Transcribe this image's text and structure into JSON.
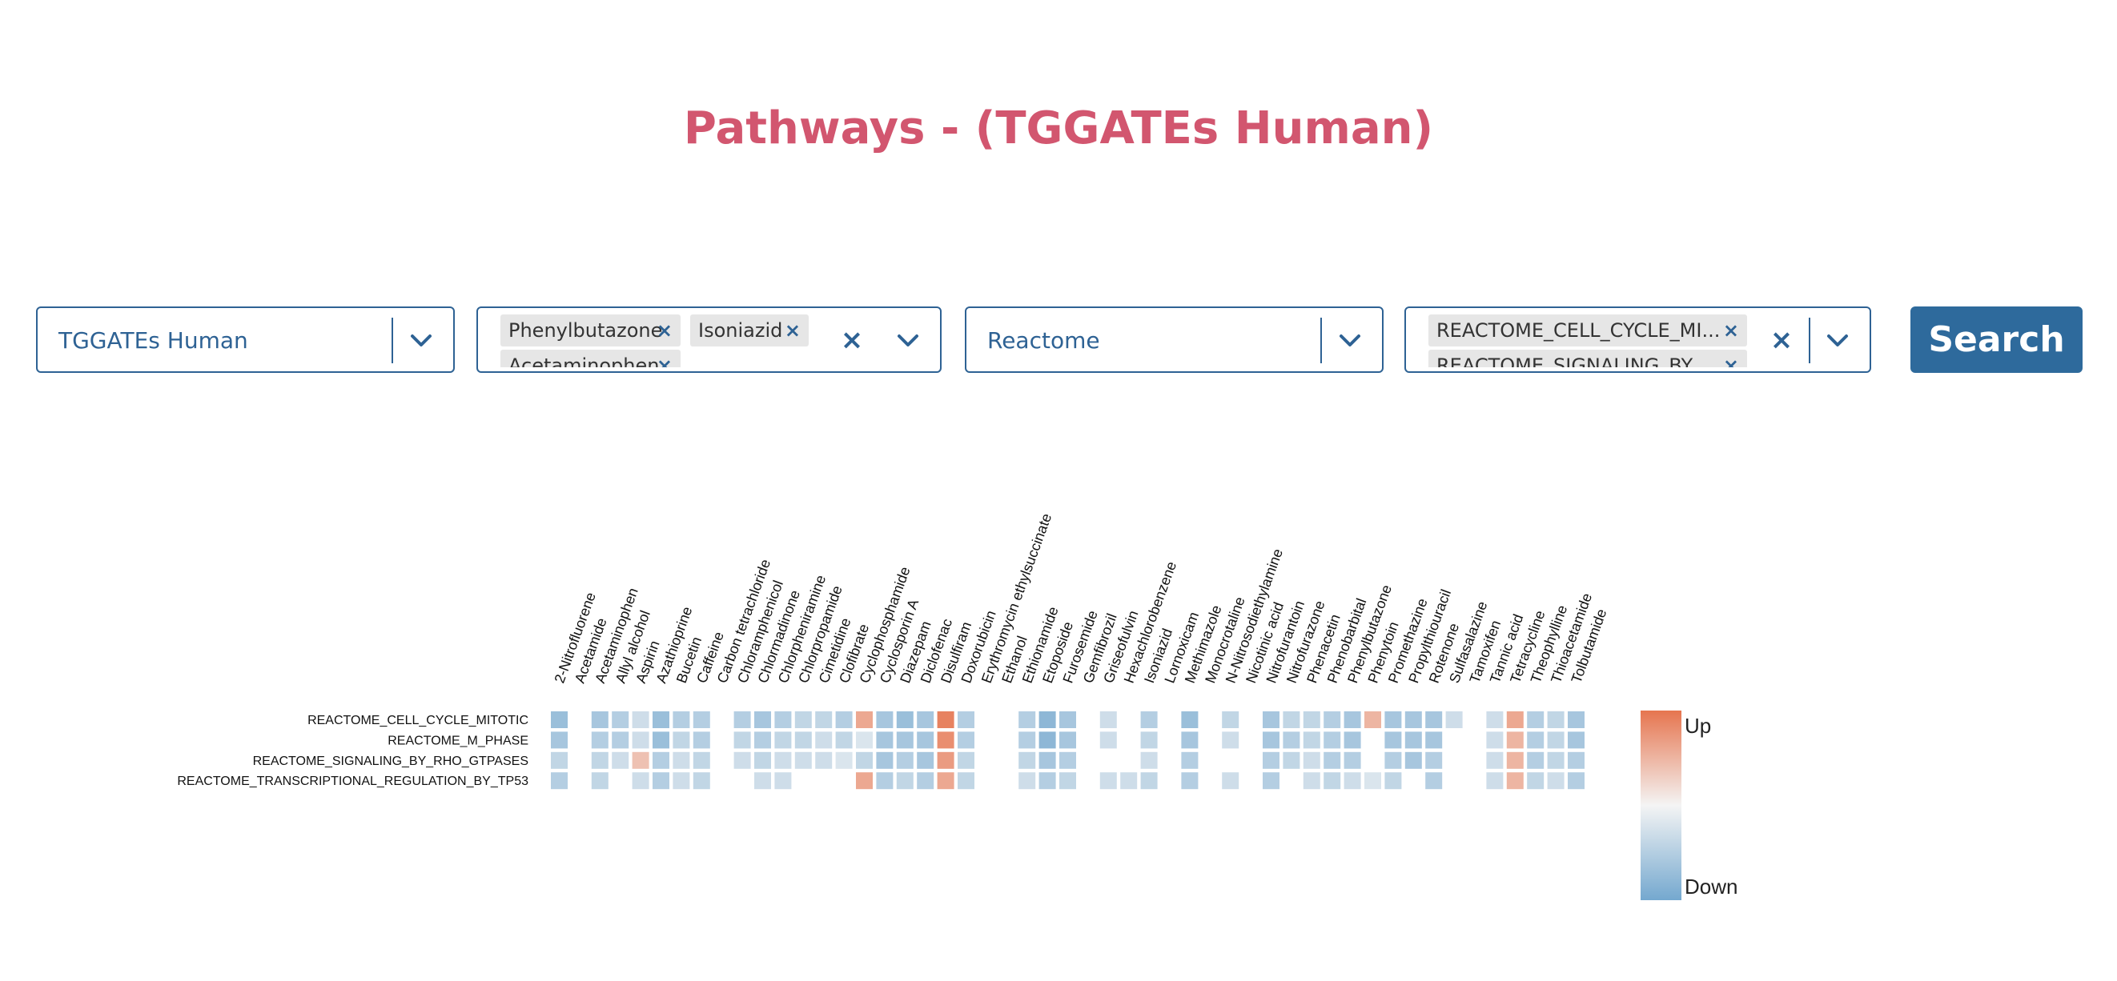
{
  "title": "Pathways - (TGGATEs Human)",
  "filters": {
    "dataset": {
      "value": "TGGATEs Human"
    },
    "compounds": {
      "tags": [
        "Phenylbutazone",
        "Isoniazid",
        "Acetaminophen"
      ]
    },
    "database": {
      "value": "Reactome"
    },
    "pathways": {
      "tags": [
        "REACTOME_CELL_CYCLE_MI...",
        "REACTOME_SIGNALING_BY_..."
      ]
    }
  },
  "search_button": {
    "label": "Search"
  },
  "icons": {
    "clear": "close-icon",
    "dropdown": "chevron-down-icon",
    "tag_remove": "close-icon"
  },
  "colors": {
    "title": "#d2566f",
    "accent": "#2e6294",
    "button": "#2e6a9c",
    "up": "#e6754f",
    "down": "#74a8cf"
  },
  "chart_data": {
    "type": "heatmap",
    "x": [
      "2-Nitrofluorene",
      "Acetamide",
      "Acetaminophen",
      "Allyl alcohol",
      "Aspirin",
      "Azathioprine",
      "Bucetin",
      "Caffeine",
      "Carbon tetrachloride",
      "Chloramphenicol",
      "Chlormadinone",
      "Chlorpheniramine",
      "Chlorpropamide",
      "Cimetidine",
      "Clofibrate",
      "Cyclophosphamide",
      "Cyclosporin A",
      "Diazepam",
      "Diclofenac",
      "Disulfiram",
      "Doxorubicin",
      "Erythromycin ethylsuccinate",
      "Ethanol",
      "Ethionamide",
      "Etoposide",
      "Furosemide",
      "Gemfibrozil",
      "Griseofulvin",
      "Hexachlorobenzene",
      "Isoniazid",
      "Lornoxicam",
      "Methimazole",
      "Monocrotaline",
      "N-Nitrosodiethylamine",
      "Nicotinic acid",
      "Nitrofurantoin",
      "Nitrofurazone",
      "Phenacetin",
      "Phenobarbital",
      "Phenylbutazone",
      "Phenytoin",
      "Promethazine",
      "Propylthiouracil",
      "Rotenone",
      "Sulfasalazine",
      "Tamoxifen",
      "Tannic acid",
      "Tetracycline",
      "Theophylline",
      "Thioacetamide",
      "Tolbutamide"
    ],
    "y": [
      "REACTOME_CELL_CYCLE_MITOTIC",
      "REACTOME_M_PHASE",
      "REACTOME_SIGNALING_BY_RHO_GTPASES",
      "REACTOME_TRANSCRIPTIONAL_REGULATION_BY_TP53"
    ],
    "values": [
      [
        -0.7,
        null,
        -0.6,
        -0.5,
        -0.3,
        -0.7,
        -0.5,
        -0.5,
        null,
        -0.5,
        -0.6,
        -0.5,
        -0.4,
        -0.4,
        -0.5,
        0.6,
        -0.6,
        -0.7,
        -0.6,
        0.9,
        -0.5,
        null,
        null,
        -0.5,
        -0.8,
        -0.6,
        null,
        -0.3,
        null,
        -0.5,
        null,
        -0.7,
        null,
        -0.4,
        null,
        -0.6,
        -0.4,
        -0.4,
        -0.5,
        -0.6,
        0.5,
        -0.6,
        -0.6,
        -0.6,
        -0.3,
        null,
        -0.3,
        0.6,
        -0.5,
        -0.4,
        -0.6
      ],
      [
        -0.6,
        null,
        -0.5,
        -0.5,
        -0.3,
        -0.7,
        -0.4,
        -0.5,
        null,
        -0.4,
        -0.5,
        -0.4,
        -0.4,
        -0.3,
        -0.4,
        -0.2,
        -0.6,
        -0.6,
        -0.6,
        0.8,
        -0.5,
        null,
        null,
        -0.5,
        -0.8,
        -0.6,
        null,
        -0.3,
        null,
        -0.4,
        null,
        -0.6,
        null,
        -0.3,
        null,
        -0.6,
        -0.5,
        -0.4,
        -0.5,
        -0.6,
        null,
        -0.6,
        -0.6,
        -0.6,
        null,
        null,
        -0.3,
        0.5,
        -0.5,
        -0.4,
        -0.6
      ],
      [
        -0.4,
        null,
        -0.4,
        -0.3,
        0.4,
        -0.5,
        -0.3,
        -0.4,
        null,
        -0.3,
        -0.4,
        -0.3,
        -0.3,
        -0.3,
        -0.2,
        -0.4,
        -0.6,
        -0.5,
        -0.6,
        0.7,
        -0.4,
        null,
        null,
        -0.4,
        -0.6,
        -0.5,
        null,
        null,
        null,
        -0.3,
        null,
        -0.5,
        null,
        null,
        null,
        -0.5,
        -0.4,
        -0.3,
        -0.5,
        -0.5,
        null,
        -0.5,
        -0.6,
        -0.5,
        null,
        null,
        -0.3,
        0.5,
        -0.5,
        -0.4,
        -0.5
      ],
      [
        -0.5,
        null,
        -0.4,
        null,
        -0.3,
        -0.5,
        -0.3,
        -0.4,
        null,
        null,
        -0.3,
        -0.3,
        null,
        null,
        null,
        0.6,
        -0.5,
        -0.4,
        -0.5,
        0.6,
        -0.4,
        null,
        null,
        -0.3,
        -0.5,
        -0.4,
        null,
        -0.3,
        -0.3,
        -0.4,
        null,
        -0.5,
        null,
        -0.3,
        null,
        -0.5,
        null,
        -0.3,
        -0.4,
        -0.3,
        -0.2,
        -0.4,
        null,
        -0.5,
        null,
        null,
        -0.3,
        0.5,
        -0.4,
        -0.3,
        -0.5
      ]
    ],
    "legend": {
      "labels": [
        "Up",
        "Down"
      ],
      "placement": "right"
    }
  }
}
